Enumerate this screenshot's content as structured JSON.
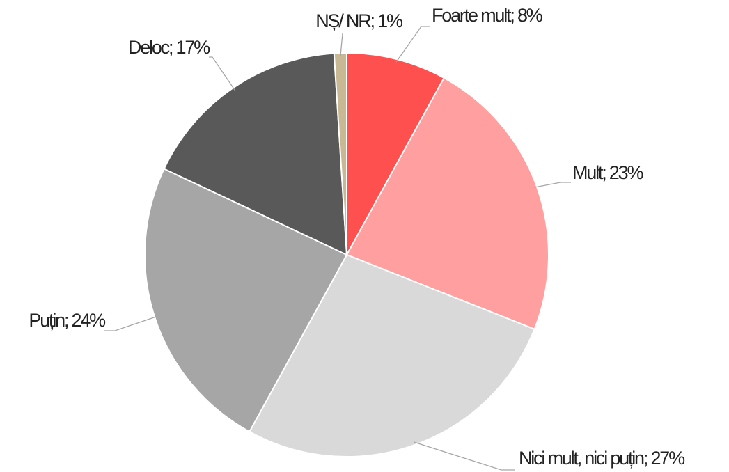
{
  "chart_data": {
    "type": "pie",
    "values": [
      8,
      23,
      27,
      24,
      17,
      1
    ],
    "value_labels": [
      "Foarte mult; 8%",
      "Mult; 23%",
      "Nici mult, nici puțin; 27%",
      "Puțin; 24%",
      "Deloc; 17%",
      "NȘ/ NR; 1%"
    ],
    "colors": [
      "#ff5050",
      "#ff9f9f",
      "#d9d9d9",
      "#a6a6a6",
      "#595959",
      "#c8b894"
    ]
  }
}
